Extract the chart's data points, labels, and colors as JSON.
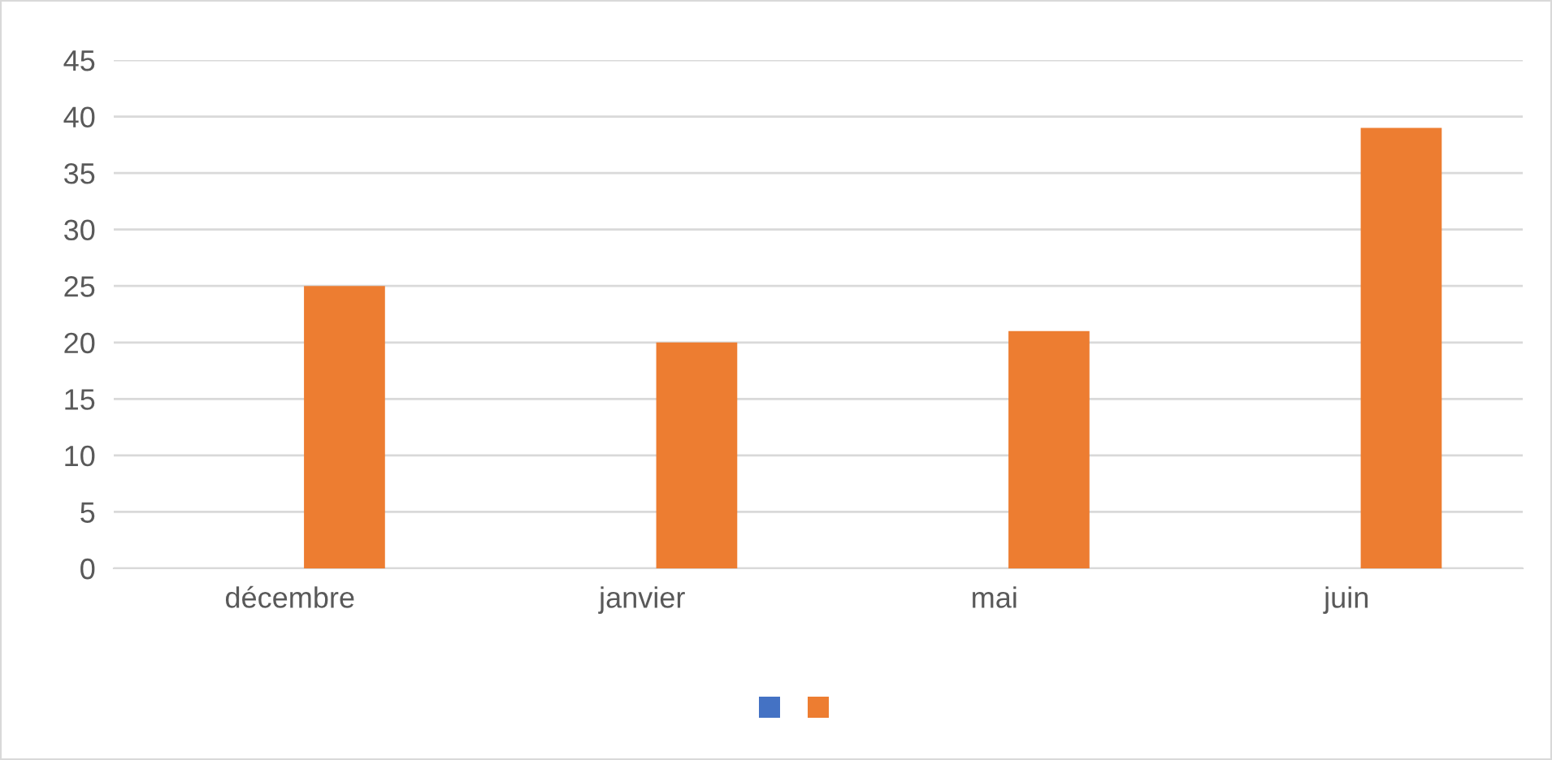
{
  "chart_data": {
    "type": "bar",
    "categories": [
      "décembre",
      "janvier",
      "mai",
      "juin"
    ],
    "series": [
      {
        "color": "#4472c4",
        "values": [
          null,
          null,
          null,
          null
        ]
      },
      {
        "color": "#ed7d31",
        "values": [
          25,
          20,
          21,
          39
        ]
      }
    ],
    "ylim": [
      0,
      45
    ],
    "yticks": [
      0,
      5,
      10,
      15,
      20,
      25,
      30,
      35,
      40,
      45
    ],
    "grid": "y"
  }
}
